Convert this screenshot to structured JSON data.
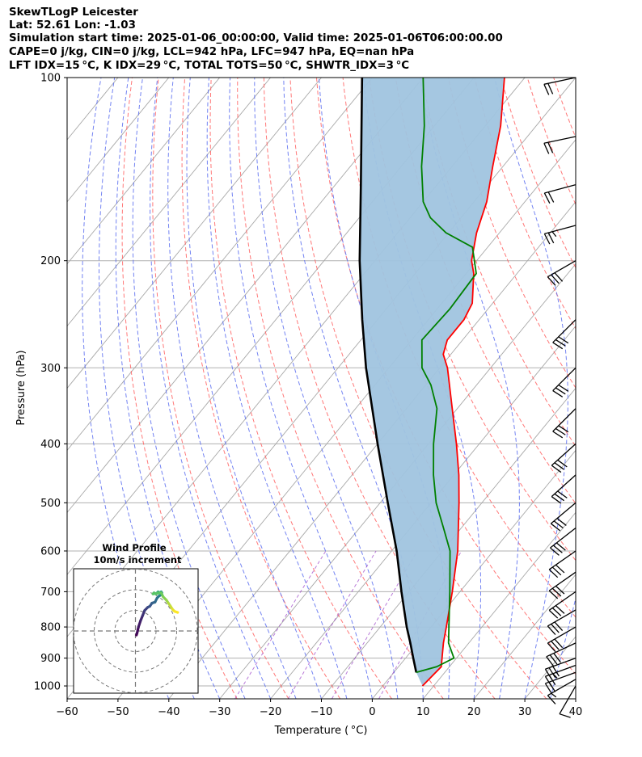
{
  "header": {
    "line1": "SkewTLogP Leicester",
    "line2": "Lat: 52.61   Lon: -1.03",
    "line3": "Simulation start time: 2025-01-06_00:00:00, Valid time: 2025-01-06T06:00:00.00",
    "line4": "CAPE=0 j/kg, CIN=0 j/kg, LCL=942 hPa, LFC=947 hPa, EQ=nan hPa",
    "line5": "LFT IDX=15 °C, K IDX=29 °C, TOTAL TOTS=50 °C, SHWTR_IDX=3 °C"
  },
  "chart_data": {
    "type": "line",
    "subtype": "skew-T log-P",
    "xlabel": "Temperature ( °C)",
    "ylabel": "Pressure (hPa)",
    "xlim": [
      -60,
      40
    ],
    "ylim": [
      1050,
      100
    ],
    "y_scale": "log",
    "grid": true,
    "x_ticks": [
      -60,
      -50,
      -40,
      -30,
      -20,
      -10,
      0,
      10,
      20,
      30,
      40
    ],
    "x_tick_labels": [
      "−60",
      "−50",
      "−40",
      "−30",
      "−20",
      "−10",
      "0",
      "10",
      "20",
      "30",
      "40"
    ],
    "y_ticks": [
      1000,
      900,
      800,
      700,
      600,
      500,
      400,
      300,
      200,
      100
    ],
    "y_tick_labels": [
      "1000",
      "900",
      "800",
      "700",
      "600",
      "500",
      "400",
      "300",
      "200",
      "100"
    ],
    "colors": {
      "temperature": "#ff0000",
      "dewpoint": "#008000",
      "parcel": "#000000",
      "shading": "#a0c4df",
      "dry_adiabats": "#ff6060",
      "moist_adiabats": "#5a6df0",
      "mixing_ratio": "#9a40c8",
      "isotherms": "#a8a8a8"
    },
    "series": [
      {
        "key": "temperature",
        "values": [
          {
            "p": 1000,
            "t": 7.8
          },
          {
            "p": 930,
            "t": 8.4
          },
          {
            "p": 850,
            "t": 5.0
          },
          {
            "p": 800,
            "t": 3.0
          },
          {
            "p": 700,
            "t": -1.5
          },
          {
            "p": 600,
            "t": -7.0
          },
          {
            "p": 500,
            "t": -14.5
          },
          {
            "p": 450,
            "t": -19.0
          },
          {
            "p": 400,
            "t": -24.5
          },
          {
            "p": 350,
            "t": -31.0
          },
          {
            "p": 300,
            "t": -38.5
          },
          {
            "p": 285,
            "t": -41.5
          },
          {
            "p": 270,
            "t": -43.0
          },
          {
            "p": 250,
            "t": -43.0
          },
          {
            "p": 235,
            "t": -44.0
          },
          {
            "p": 210,
            "t": -48.5
          },
          {
            "p": 200,
            "t": -51.0
          },
          {
            "p": 180,
            "t": -54.5
          },
          {
            "p": 160,
            "t": -57.5
          },
          {
            "p": 140,
            "t": -62.0
          },
          {
            "p": 120,
            "t": -67.0
          },
          {
            "p": 100,
            "t": -74.0
          }
        ]
      },
      {
        "key": "dewpoint",
        "values": [
          {
            "p": 950,
            "t": 4.4
          },
          {
            "p": 930,
            "t": 7.5
          },
          {
            "p": 900,
            "t": 9.5
          },
          {
            "p": 850,
            "t": 6.0
          },
          {
            "p": 800,
            "t": 3.5
          },
          {
            "p": 700,
            "t": -2.0
          },
          {
            "p": 600,
            "t": -8.5
          },
          {
            "p": 550,
            "t": -13.5
          },
          {
            "p": 500,
            "t": -19.0
          },
          {
            "p": 450,
            "t": -24.0
          },
          {
            "p": 400,
            "t": -29.0
          },
          {
            "p": 350,
            "t": -34.0
          },
          {
            "p": 320,
            "t": -39.0
          },
          {
            "p": 300,
            "t": -43.5
          },
          {
            "p": 270,
            "t": -48.0
          },
          {
            "p": 240,
            "t": -47.5
          },
          {
            "p": 210,
            "t": -48.0
          },
          {
            "p": 190,
            "t": -53.0
          },
          {
            "p": 180,
            "t": -60.5
          },
          {
            "p": 170,
            "t": -66.0
          },
          {
            "p": 160,
            "t": -70.0
          },
          {
            "p": 140,
            "t": -76.0
          },
          {
            "p": 120,
            "t": -82.0
          },
          {
            "p": 100,
            "t": -90.0
          }
        ]
      },
      {
        "key": "parcel",
        "values": [
          {
            "p": 950,
            "t": 4.4
          },
          {
            "p": 900,
            "t": 1.5
          },
          {
            "p": 850,
            "t": -1.5
          },
          {
            "p": 800,
            "t": -4.8
          },
          {
            "p": 700,
            "t": -11.5
          },
          {
            "p": 600,
            "t": -19.0
          },
          {
            "p": 500,
            "t": -28.5
          },
          {
            "p": 400,
            "t": -40.0
          },
          {
            "p": 300,
            "t": -54.5
          },
          {
            "p": 250,
            "t": -63.0
          },
          {
            "p": 200,
            "t": -73.0
          },
          {
            "p": 150,
            "t": -85.0
          },
          {
            "p": 100,
            "t": -102.0
          }
        ]
      }
    ],
    "wind_barbs": {
      "pressures": [
        1000,
        975,
        950,
        925,
        900,
        850,
        800,
        750,
        700,
        650,
        600,
        550,
        500,
        450,
        400,
        350,
        300,
        250,
        200,
        175,
        150,
        125,
        100
      ],
      "direction_deg": [
        210,
        240,
        250,
        250,
        250,
        245,
        240,
        240,
        235,
        235,
        235,
        232,
        230,
        228,
        228,
        225,
        225,
        225,
        240,
        255,
        255,
        258,
        258
      ],
      "speed_kt": [
        10,
        15,
        20,
        25,
        30,
        30,
        30,
        30,
        30,
        30,
        30,
        30,
        30,
        30,
        30,
        30,
        30,
        30,
        30,
        25,
        20,
        20,
        20
      ]
    },
    "hodograph": {
      "title_line1": "Wind Profile",
      "title_line2": "10m/s increment",
      "ring_step_ms": 10,
      "ring_count": 3,
      "colormap": "viridis",
      "u": [
        0.5,
        0.8,
        1.5,
        2.5,
        3.5,
        4.5,
        6.0,
        7.0,
        8.0,
        9.5,
        10.5,
        11.5,
        12.5,
        12.8,
        12.5,
        12.0,
        11.0,
        10.0,
        9.0,
        8.5,
        12.5,
        13.5,
        15.0,
        16.0,
        17.0,
        18.0,
        19.0,
        20.5
      ],
      "v": [
        -2.0,
        -1.0,
        2.0,
        5.0,
        7.5,
        10.0,
        11.5,
        12.0,
        13.5,
        14.0,
        16.0,
        17.0,
        17.5,
        18.5,
        19.0,
        18.5,
        19.0,
        18.0,
        18.5,
        18.0,
        18.5,
        16.5,
        15.0,
        13.5,
        12.0,
        10.5,
        9.5,
        9.0
      ]
    }
  }
}
